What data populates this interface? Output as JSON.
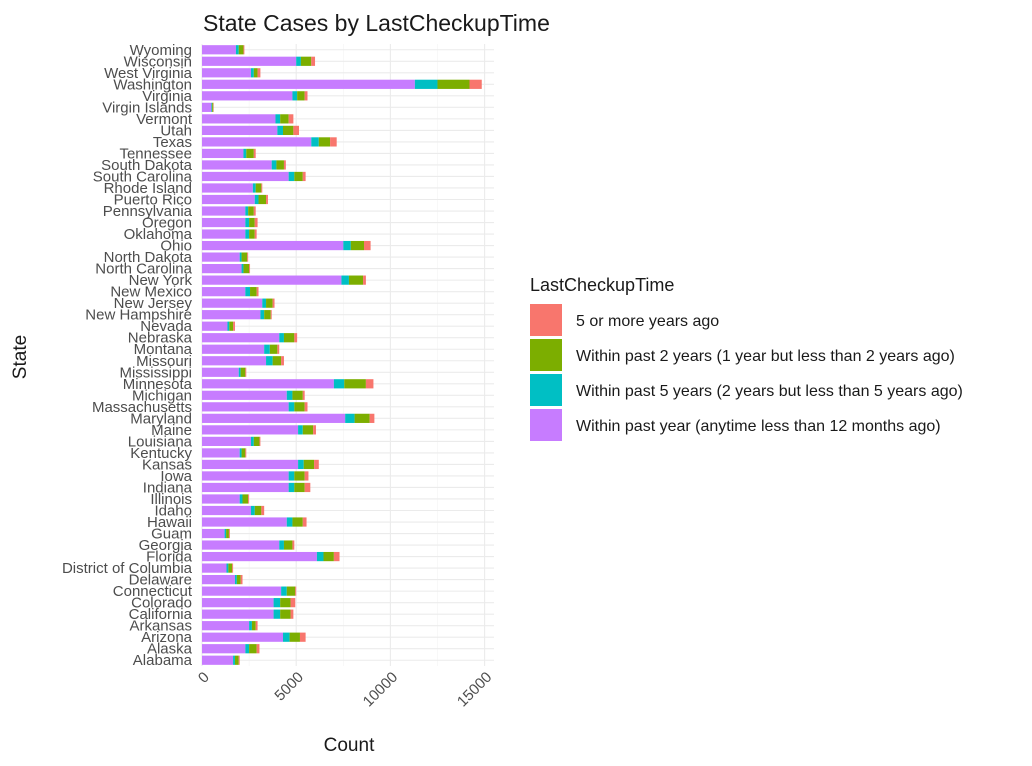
{
  "chart_data": {
    "type": "bar",
    "orientation": "horizontal",
    "stacked": true,
    "title": "State Cases by LastCheckupTime",
    "xlabel": "Count",
    "ylabel": "State",
    "xlim": [
      0,
      15500
    ],
    "x_ticks": [
      0,
      5000,
      10000,
      15000
    ],
    "x_tick_labels": [
      "0",
      "5000",
      "10000",
      "15000"
    ],
    "grid": true,
    "legend": {
      "title": "LastCheckupTime",
      "placement": "right"
    },
    "categories": [
      "Alabama",
      "Alaska",
      "Arizona",
      "Arkansas",
      "California",
      "Colorado",
      "Connecticut",
      "Delaware",
      "District of Columbia",
      "Florida",
      "Georgia",
      "Guam",
      "Hawaii",
      "Idaho",
      "Illinois",
      "Indiana",
      "Iowa",
      "Kansas",
      "Kentucky",
      "Louisiana",
      "Maine",
      "Maryland",
      "Massachusetts",
      "Michigan",
      "Minnesota",
      "Mississippi",
      "Missouri",
      "Montana",
      "Nebraska",
      "Nevada",
      "New Hampshire",
      "New Jersey",
      "New Mexico",
      "New York",
      "North Carolina",
      "North Dakota",
      "Ohio",
      "Oklahoma",
      "Oregon",
      "Pennsylvania",
      "Puerto Rico",
      "Rhode Island",
      "South Carolina",
      "South Dakota",
      "Tennessee",
      "Texas",
      "Utah",
      "Vermont",
      "Virgin Islands",
      "Virginia",
      "Washington",
      "West Virginia",
      "Wisconsin",
      "Wyoming"
    ],
    "series": [
      {
        "name": "Within past year (anytime less than 12 months ago)",
        "color": "#C77CFF",
        "values": [
          1650,
          2300,
          4300,
          2500,
          3800,
          3800,
          4200,
          1750,
          1300,
          6100,
          4100,
          1200,
          4500,
          2600,
          2000,
          4600,
          4600,
          5100,
          2000,
          2600,
          5100,
          7600,
          4600,
          4500,
          7000,
          1950,
          3400,
          3300,
          4100,
          1350,
          3100,
          3200,
          2300,
          7400,
          2100,
          2000,
          7500,
          2300,
          2300,
          2300,
          2800,
          2700,
          4600,
          3700,
          2200,
          5800,
          4000,
          3900,
          500,
          4800,
          11300,
          2600,
          5000,
          1800
        ]
      },
      {
        "name": "Within past 5 years (2 years but less than 5 years ago)",
        "color": "#00BFC4",
        "values": [
          100,
          200,
          350,
          150,
          350,
          350,
          300,
          100,
          100,
          350,
          250,
          80,
          300,
          200,
          150,
          300,
          300,
          300,
          100,
          150,
          250,
          500,
          300,
          300,
          550,
          100,
          350,
          300,
          250,
          100,
          200,
          200,
          250,
          400,
          100,
          100,
          400,
          200,
          200,
          150,
          200,
          150,
          300,
          250,
          150,
          400,
          300,
          250,
          40,
          250,
          1200,
          150,
          250,
          150
        ]
      },
      {
        "name": "Within past 2 years (1 year but less than 2 years ago)",
        "color": "#7CAE00",
        "values": [
          200,
          400,
          550,
          200,
          550,
          550,
          450,
          200,
          200,
          550,
          450,
          150,
          550,
          350,
          300,
          550,
          550,
          550,
          200,
          300,
          550,
          800,
          550,
          550,
          1150,
          250,
          450,
          400,
          550,
          200,
          350,
          350,
          350,
          750,
          300,
          300,
          700,
          300,
          300,
          300,
          400,
          300,
          450,
          400,
          400,
          600,
          550,
          450,
          60,
          400,
          1700,
          200,
          550,
          250
        ]
      },
      {
        "name": "5 or more years ago",
        "color": "#F8766D",
        "values": [
          50,
          150,
          300,
          100,
          150,
          250,
          50,
          100,
          50,
          300,
          100,
          50,
          200,
          150,
          50,
          300,
          200,
          250,
          50,
          50,
          150,
          250,
          150,
          100,
          400,
          50,
          150,
          100,
          150,
          100,
          50,
          100,
          100,
          150,
          50,
          50,
          350,
          100,
          150,
          100,
          100,
          50,
          150,
          100,
          100,
          350,
          300,
          250,
          20,
          150,
          650,
          150,
          200,
          50
        ]
      }
    ]
  }
}
